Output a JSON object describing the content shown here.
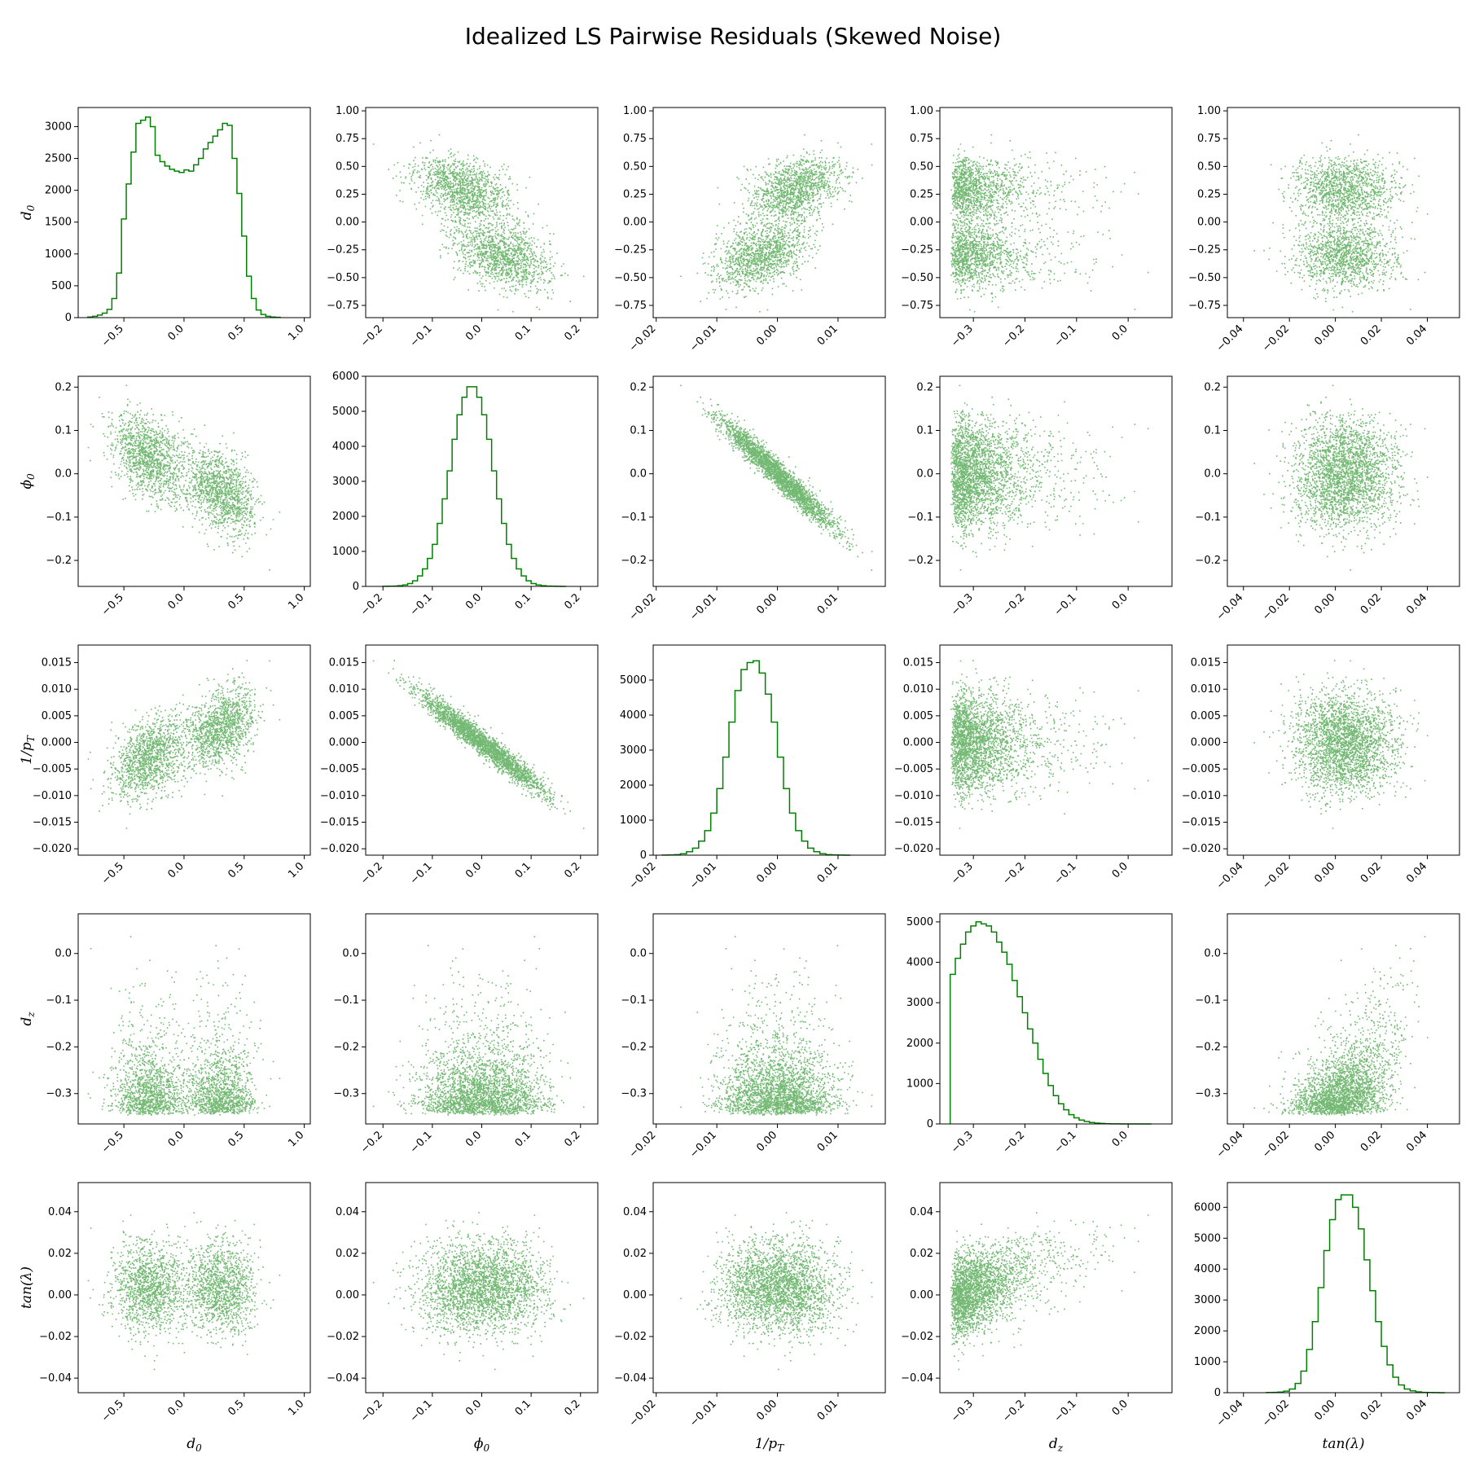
{
  "chart_data": {
    "type": "pairplot",
    "title": "Idealized LS Pairwise Residuals (Skewed Noise)",
    "color": "#008000",
    "variables": [
      {
        "name": "d_0",
        "label": "d0",
        "sub": "0",
        "base": "d",
        "range": [
          -0.88,
          1.05
        ],
        "ticks": [
          -0.5,
          0.0,
          0.5,
          1.0
        ],
        "tick_labels": [
          "−0.5",
          "0.0",
          "0.5",
          "1.0"
        ]
      },
      {
        "name": "phi_0",
        "label": "φ0",
        "sub": "0",
        "base": "φ",
        "range": [
          -0.235,
          0.235
        ],
        "ticks": [
          -0.2,
          -0.1,
          0.0,
          0.1,
          0.2
        ],
        "tick_labels": [
          "−0.2",
          "−0.1",
          "0.0",
          "0.1",
          "0.2"
        ]
      },
      {
        "name": "inv_pT",
        "label": "1/pT",
        "sub": "T",
        "base": "1/p",
        "range": [
          -0.0205,
          0.0178
        ],
        "ticks": [
          -0.02,
          -0.01,
          0.0,
          0.01
        ],
        "tick_labels": [
          "−0.02",
          "−0.01",
          "0.00",
          "0.01"
        ]
      },
      {
        "name": "d_z",
        "label": "dz",
        "sub": "z",
        "base": "d",
        "range": [
          -0.365,
          0.085
        ],
        "ticks": [
          -0.3,
          -0.2,
          -0.1,
          0.0
        ],
        "tick_labels": [
          "−0.3",
          "−0.2",
          "−0.1",
          "0.0"
        ]
      },
      {
        "name": "tan_lambda",
        "label": "tan(λ)",
        "sub": "",
        "base": "tan(λ)",
        "range": [
          -0.047,
          0.054
        ],
        "ticks": [
          -0.04,
          -0.02,
          0.0,
          0.02,
          0.04
        ],
        "tick_labels": [
          "−0.04",
          "−0.02",
          "0.00",
          "0.02",
          "0.04"
        ]
      }
    ],
    "scatter_y_axes": [
      {
        "range": [
          -0.86,
          1.03
        ],
        "ticks": [
          -0.75,
          -0.5,
          -0.25,
          0.0,
          0.25,
          0.5,
          0.75,
          1.0
        ],
        "tick_labels": [
          "−0.75",
          "−0.50",
          "−0.25",
          "0.00",
          "0.25",
          "0.50",
          "0.75",
          "1.00"
        ]
      },
      {
        "range": [
          -0.26,
          0.225
        ],
        "ticks": [
          -0.2,
          -0.1,
          0.0,
          0.1,
          0.2
        ],
        "tick_labels": [
          "−0.2",
          "−0.1",
          "0.0",
          "0.1",
          "0.2"
        ]
      },
      {
        "range": [
          -0.0212,
          0.0183
        ],
        "ticks": [
          -0.02,
          -0.015,
          -0.01,
          -0.005,
          0.0,
          0.005,
          0.01,
          0.015
        ],
        "tick_labels": [
          "−0.020",
          "−0.015",
          "−0.010",
          "−0.005",
          "0.000",
          "0.005",
          "0.010",
          "0.015"
        ]
      },
      {
        "range": [
          -0.365,
          0.085
        ],
        "ticks": [
          -0.3,
          -0.2,
          -0.1,
          0.0
        ],
        "tick_labels": [
          "−0.3",
          "−0.2",
          "−0.1",
          "0.0"
        ]
      },
      {
        "range": [
          -0.047,
          0.054
        ],
        "ticks": [
          -0.04,
          -0.02,
          0.0,
          0.02,
          0.04
        ],
        "tick_labels": [
          "−0.04",
          "−0.02",
          "0.00",
          "0.02",
          "0.04"
        ]
      }
    ],
    "histograms": [
      {
        "variable": "d_0",
        "ylim": [
          0,
          3300
        ],
        "yticks": [
          0,
          500,
          1000,
          1500,
          2000,
          2500,
          3000
        ],
        "bin_start": -0.8,
        "bin_width": 0.04,
        "counts": [
          10,
          20,
          40,
          70,
          130,
          300,
          700,
          1550,
          2100,
          2600,
          3050,
          3100,
          3150,
          3000,
          2550,
          2450,
          2380,
          2330,
          2300,
          2280,
          2320,
          2300,
          2400,
          2500,
          2650,
          2750,
          2850,
          2950,
          3050,
          3020,
          2500,
          1950,
          1280,
          650,
          300,
          120,
          50,
          20,
          10,
          5
        ]
      },
      {
        "variable": "phi_0",
        "ylim": [
          0,
          6000
        ],
        "yticks": [
          0,
          1000,
          2000,
          3000,
          4000,
          5000,
          6000
        ],
        "bin_start": -0.2,
        "bin_width": 0.01,
        "counts": [
          2,
          5,
          10,
          20,
          40,
          80,
          160,
          300,
          500,
          800,
          1200,
          1800,
          2500,
          3300,
          4200,
          4900,
          5400,
          5700,
          5700,
          5400,
          4900,
          4200,
          3300,
          2500,
          1800,
          1200,
          800,
          500,
          300,
          160,
          80,
          40,
          20,
          10,
          5,
          2,
          1
        ]
      },
      {
        "variable": "inv_pT",
        "ylim": [
          0,
          6000
        ],
        "yticks": [
          0,
          1000,
          2000,
          3000,
          4000,
          5000
        ],
        "bin_start": -0.019,
        "bin_width": 0.001,
        "counts": [
          3,
          6,
          15,
          40,
          100,
          200,
          400,
          700,
          1200,
          1900,
          2800,
          3800,
          4700,
          5300,
          5500,
          5550,
          5200,
          4600,
          3800,
          2800,
          1900,
          1200,
          700,
          400,
          200,
          100,
          40,
          15,
          6,
          3,
          1
        ]
      },
      {
        "variable": "d_z",
        "ylim": [
          0,
          5200
        ],
        "yticks": [
          0,
          1000,
          2000,
          3000,
          4000,
          5000
        ],
        "bin_start": -0.345,
        "bin_width": 0.01,
        "counts": [
          3700,
          4100,
          4450,
          4750,
          4900,
          5000,
          4950,
          4900,
          4750,
          4500,
          4250,
          3950,
          3550,
          3150,
          2750,
          2350,
          2000,
          1600,
          1250,
          950,
          700,
          500,
          350,
          230,
          150,
          95,
          60,
          35,
          20,
          12,
          6,
          3,
          2,
          1,
          1,
          0,
          0,
          0,
          0
        ]
      },
      {
        "variable": "tan_lambda",
        "ylim": [
          0,
          6800
        ],
        "yticks": [
          0,
          1000,
          2000,
          3000,
          4000,
          5000,
          6000
        ],
        "bin_start": -0.03,
        "bin_width": 0.0025,
        "counts": [
          5,
          10,
          20,
          50,
          120,
          300,
          700,
          1400,
          2300,
          3400,
          4600,
          5600,
          6250,
          6400,
          6400,
          6000,
          5300,
          4300,
          3300,
          2300,
          1500,
          900,
          500,
          250,
          120,
          60,
          25,
          10,
          5,
          2,
          1
        ]
      }
    ],
    "axis_display": [
      {
        "base": "d",
        "sub": "0"
      },
      {
        "base": "ϕ",
        "sub": "0"
      },
      {
        "base": "1/p",
        "sub": "T"
      },
      {
        "base": "d",
        "sub": "z"
      },
      {
        "base": "tan(λ)",
        "sub": ""
      }
    ]
  }
}
